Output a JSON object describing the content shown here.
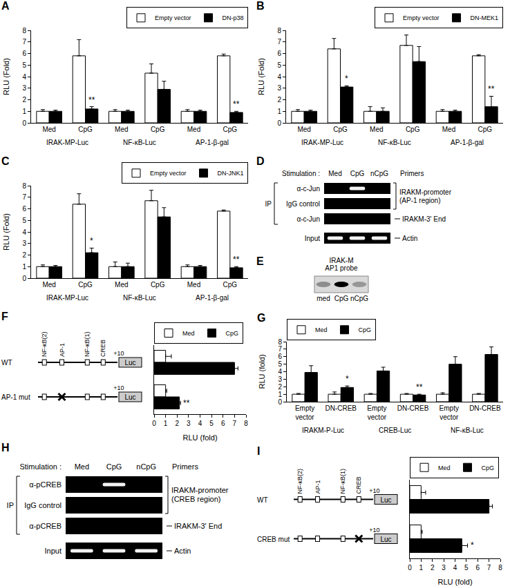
{
  "chart_data": [
    {
      "panel": "A",
      "type": "bar",
      "categories": [
        "Med",
        "CpG",
        "Med",
        "CpG",
        "Med",
        "CpG"
      ],
      "groups": [
        "IRAK-MP-Luc",
        "NF-κB-Luc",
        "AP-1-β-gal"
      ],
      "y_label": "RLU (Fold)",
      "ylim": [
        0,
        8
      ],
      "yticks": [
        0,
        1,
        2,
        3,
        4,
        5,
        6,
        7,
        8
      ],
      "legend": "top right",
      "series": [
        {
          "name": "Empty vector",
          "color": "#ffffff",
          "values": [
            1,
            5.8,
            1,
            4.3,
            1,
            5.8
          ],
          "errors": [
            0.15,
            1.4,
            0.15,
            0.8,
            0.15,
            0.15
          ]
        },
        {
          "name": "DN-p38",
          "color": "#000000",
          "values": [
            1,
            1.2,
            1,
            2.9,
            1,
            0.9
          ],
          "errors": [
            0.1,
            0.2,
            0.1,
            0.7,
            0.1,
            0.1
          ]
        }
      ],
      "annotations": [
        {
          "category": 1,
          "series": "DN-p38",
          "text": "**"
        },
        {
          "category": 5,
          "series": "DN-p38",
          "text": "**"
        }
      ]
    },
    {
      "panel": "B",
      "type": "bar",
      "categories": [
        "Med",
        "CpG",
        "Med",
        "CpG",
        "Med",
        "CpG"
      ],
      "groups": [
        "IRAK-MP-Luc",
        "NF-κB-Luc",
        "AP-1-β-gal"
      ],
      "y_label": "RLU (Fold)",
      "ylim": [
        0,
        8
      ],
      "yticks": [
        0,
        1,
        2,
        3,
        4,
        5,
        6,
        7,
        8
      ],
      "legend": "top right",
      "series": [
        {
          "name": "Empty vector",
          "color": "#ffffff",
          "values": [
            1,
            6.4,
            1,
            6.7,
            1,
            5.8
          ],
          "errors": [
            0.15,
            0.9,
            0.4,
            0.9,
            0.15,
            0.1
          ]
        },
        {
          "name": "DN-MEK1",
          "color": "#000000",
          "values": [
            1,
            3.1,
            1,
            5.3,
            1,
            1.4
          ],
          "errors": [
            0.1,
            0.1,
            0.3,
            1.3,
            0.1,
            0.9
          ]
        }
      ],
      "annotations": [
        {
          "category": 1,
          "series": "DN-MEK1",
          "text": "*"
        },
        {
          "category": 5,
          "series": "DN-MEK1",
          "text": "**"
        }
      ]
    },
    {
      "panel": "C",
      "type": "bar",
      "categories": [
        "Med",
        "CpG",
        "Med",
        "CpG",
        "Med",
        "CpG"
      ],
      "groups": [
        "IRAK-MP-Luc",
        "NF-κB-Luc",
        "AP-1-β-gal"
      ],
      "y_label": "RLU (Fold)",
      "ylim": [
        0,
        8
      ],
      "yticks": [
        0,
        1,
        2,
        3,
        4,
        5,
        6,
        7,
        8
      ],
      "legend": "top right",
      "series": [
        {
          "name": "Empty vector",
          "color": "#ffffff",
          "values": [
            1,
            6.4,
            1,
            6.7,
            1,
            5.8
          ],
          "errors": [
            0.15,
            0.9,
            0.4,
            0.9,
            0.15,
            0.1
          ]
        },
        {
          "name": "DN-JNK1",
          "color": "#000000",
          "values": [
            1,
            2.2,
            1,
            5.3,
            1,
            0.9
          ],
          "errors": [
            0.1,
            0.4,
            0.3,
            0.8,
            0.1,
            0.1
          ]
        }
      ],
      "annotations": [
        {
          "category": 1,
          "series": "DN-JNK1",
          "text": "*"
        },
        {
          "category": 5,
          "series": "DN-JNK1",
          "text": "**"
        }
      ]
    },
    {
      "panel": "F",
      "type": "bar",
      "orientation": "horizontal",
      "tick_labels": "x",
      "categories": [
        "WT",
        "AP-1 mut"
      ],
      "x_label": "RLU (fold)",
      "xlim": [
        0,
        8
      ],
      "xticks": [
        0,
        1,
        2,
        3,
        4,
        5,
        6,
        7,
        8
      ],
      "legend": "top left",
      "series": [
        {
          "name": "Med",
          "color": "#ffffff",
          "values": [
            1,
            1
          ],
          "errors": [
            0.5,
            0.1
          ]
        },
        {
          "name": "CpG",
          "color": "#000000",
          "values": [
            7,
            2.2
          ],
          "errors": [
            0.3,
            0.1
          ]
        }
      ],
      "annotations": [
        {
          "category": 1,
          "series": "CpG",
          "text": "**"
        }
      ],
      "construct": {
        "elements": [
          "NF-κB(2)",
          "AP-1",
          "NF-κB(1)",
          "CREB"
        ],
        "start": "+10",
        "reporter": "Luc",
        "mutated": [
          null,
          "AP-1"
        ]
      }
    },
    {
      "panel": "G",
      "type": "bar",
      "categories": [
        "Empty vector",
        "DN-CREB",
        "Empty vector",
        "DN-CREB",
        "Empty vector",
        "DN-CREB"
      ],
      "groups": [
        "IRAKM-P-Luc",
        "CREB-Luc",
        "NF-κB-Luc"
      ],
      "y_label": "RLU (fold)",
      "ylim": [
        0,
        8
      ],
      "yticks": [
        0,
        1,
        2,
        3,
        4,
        5,
        6,
        7,
        8
      ],
      "legend": "top left",
      "series": [
        {
          "name": "Med",
          "color": "#ffffff",
          "values": [
            1,
            1,
            1,
            1,
            1,
            1
          ],
          "errors": [
            0.1,
            0.3,
            0.1,
            0.1,
            0.2,
            0.1
          ]
        },
        {
          "name": "CpG",
          "color": "#000000",
          "values": [
            3.9,
            1.9,
            4.1,
            0.9,
            5.0,
            6.3
          ],
          "errors": [
            0.9,
            0.2,
            0.5,
            0.1,
            1.0,
            1.0
          ]
        }
      ],
      "annotations": [
        {
          "category": 1,
          "series": "CpG",
          "text": "*"
        },
        {
          "category": 3,
          "series": "CpG",
          "text": "**"
        }
      ]
    },
    {
      "panel": "I",
      "type": "bar",
      "orientation": "horizontal",
      "tick_labels": "x",
      "categories": [
        "WT",
        "CREB mut"
      ],
      "x_label": "RLU (fold)",
      "xlim": [
        0,
        8
      ],
      "xticks": [
        0,
        1,
        2,
        3,
        4,
        5,
        6,
        7,
        8
      ],
      "legend": "top left",
      "series": [
        {
          "name": "Med",
          "color": "#ffffff",
          "values": [
            1,
            1
          ],
          "errors": [
            0.4,
            0.1
          ]
        },
        {
          "name": "CpG",
          "color": "#000000",
          "values": [
            7,
            4.6
          ],
          "errors": [
            0.3,
            0.5
          ]
        }
      ],
      "annotations": [
        {
          "category": 1,
          "series": "CpG",
          "text": "*"
        }
      ],
      "construct": {
        "elements": [
          "NF-κB(2)",
          "AP-1",
          "NF-κB(1)",
          "CREB"
        ],
        "start": "+10",
        "reporter": "Luc",
        "mutated": [
          null,
          "CREB"
        ]
      }
    }
  ],
  "diagrams": [
    {
      "panel": "D",
      "type": "gel",
      "stimulation_label": "Stimulation :",
      "lanes": [
        "Med",
        "CpG",
        "nCpG"
      ],
      "primers_label": "Primers",
      "ip_label": "IP",
      "rows": [
        {
          "antibody": "α-c-Jun",
          "ip": true,
          "primer": 0,
          "bands": [
            false,
            true,
            false
          ]
        },
        {
          "antibody": "IgG control",
          "ip": true,
          "primer": 0,
          "bands": [
            false,
            false,
            false
          ]
        },
        {
          "antibody": "α-c-Jun",
          "ip": true,
          "primer": 1,
          "bands": [
            false,
            false,
            false
          ]
        },
        {
          "antibody": "Input",
          "ip": false,
          "primer": 2,
          "bands": [
            true,
            true,
            true
          ]
        }
      ],
      "primers": [
        [
          "IRAKM-promoter",
          "(AP-1 region)"
        ],
        [
          "IRAKM-3' End"
        ],
        [
          "Actin"
        ]
      ]
    },
    {
      "panel": "E",
      "type": "gel_shift",
      "probe_label": [
        "IRAK-M",
        "AP1 probe"
      ],
      "lanes": [
        "med",
        "CpG",
        "nCpG"
      ],
      "band_intensity": [
        0.35,
        1,
        0.3
      ]
    },
    {
      "panel": "H",
      "type": "gel",
      "stimulation_label": "Stimulation :",
      "lanes": [
        "Med",
        "CpG",
        "nCpG"
      ],
      "primers_label": "Primers",
      "ip_label": "IP",
      "rows": [
        {
          "antibody": "α-pCREB",
          "ip": true,
          "primer": 0,
          "bands": [
            false,
            true,
            false
          ]
        },
        {
          "antibody": "IgG control",
          "ip": true,
          "primer": 0,
          "bands": [
            false,
            false,
            false
          ]
        },
        {
          "antibody": "α-pCREB",
          "ip": true,
          "primer": 1,
          "bands": [
            false,
            false,
            false
          ]
        },
        {
          "antibody": "Input",
          "ip": false,
          "primer": 2,
          "bands": [
            true,
            true,
            true
          ]
        }
      ],
      "primers": [
        [
          "IRAKM-promoter",
          "(CREB region)"
        ],
        [
          "IRAKM-3' End"
        ],
        [
          "Actin"
        ]
      ]
    }
  ]
}
